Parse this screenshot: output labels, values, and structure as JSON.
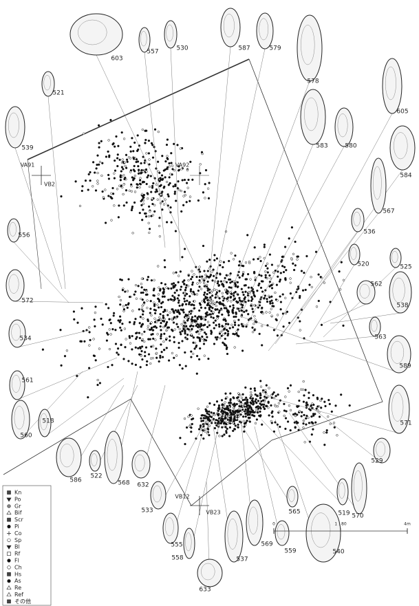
{
  "artifacts": [
    "603",
    "557",
    "530",
    "587",
    "579",
    "578",
    "521",
    "605",
    "583",
    "580",
    "539",
    "584",
    "567",
    "556",
    "536",
    "520",
    "525",
    "562",
    "538",
    "572",
    "534",
    "563",
    "589",
    "561",
    "571",
    "518",
    "560",
    "529",
    "522",
    "586",
    "568",
    "632",
    "533",
    "565",
    "519",
    "570",
    "555",
    "569",
    "537",
    "559",
    "540",
    "558",
    "633"
  ],
  "grid_labels": [
    "VA91",
    "VB2",
    "VA92",
    "VB12",
    "VB23"
  ],
  "legend": [
    "Kn",
    "Po",
    "Gr",
    "Bif",
    "Scr",
    "Pi",
    "Co",
    "Sp",
    "Bl",
    "Rf",
    "Fl",
    "Ch",
    "Hs",
    "As",
    "Re",
    "Ref",
    "その他"
  ],
  "scale": {
    "start": "0",
    "ratio": "1 : 80",
    "end": "4m"
  }
}
